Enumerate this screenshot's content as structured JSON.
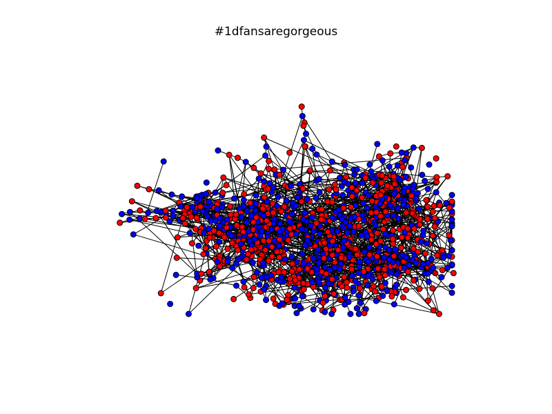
{
  "title": "#1dfansaregorgeous",
  "graph": {
    "layout": "force-directed network",
    "node_colors": [
      "#ff0000",
      "#0000ff"
    ],
    "node_outline_color": "#000000",
    "edge_color": "#000000",
    "axes_visible": false
  }
}
